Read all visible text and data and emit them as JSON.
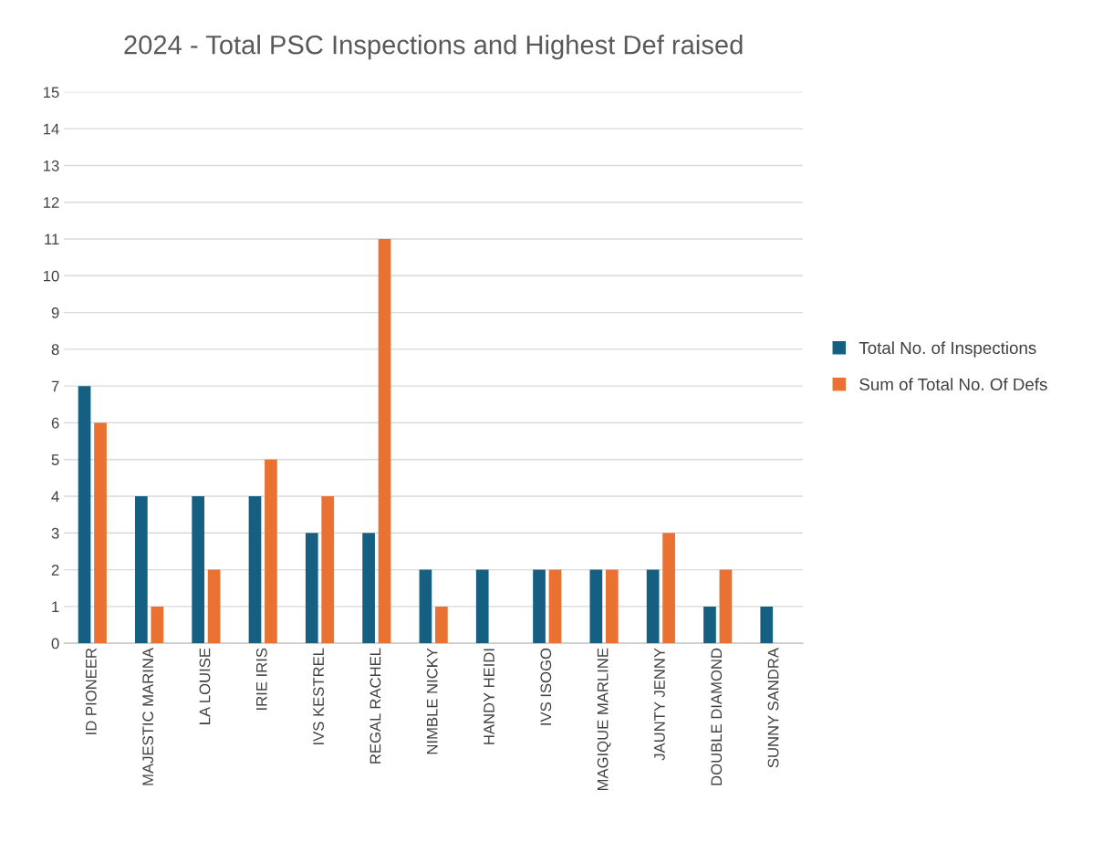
{
  "chart_data": {
    "type": "bar",
    "title": "2024 - Total PSC Inspections and Highest Def raised",
    "categories": [
      "ID PIONEER",
      "MAJESTIC MARINA",
      "LA LOUISE",
      "IRIE IRIS",
      "IVS KESTREL",
      "REGAL RACHEL",
      "NIMBLE NICKY",
      "HANDY HEIDI",
      "IVS ISOGO",
      "MAGIQUE MARLINE",
      "JAUNTY JENNY",
      "DOUBLE DIAMOND",
      "SUNNY SANDRA"
    ],
    "series": [
      {
        "name": "Total No. of Inspections",
        "color": "#156082",
        "values": [
          7,
          4,
          4,
          4,
          3,
          3,
          2,
          2,
          2,
          2,
          2,
          1,
          1
        ]
      },
      {
        "name": "Sum of Total No. Of Defs",
        "color": "#e97132",
        "values": [
          6,
          1,
          2,
          5,
          4,
          11,
          1,
          null,
          2,
          2,
          3,
          2,
          null
        ]
      }
    ],
    "ylim": [
      0,
      15
    ],
    "yticks": [
      0,
      1,
      2,
      3,
      4,
      5,
      6,
      7,
      8,
      9,
      10,
      11,
      12,
      13,
      14,
      15
    ],
    "grid": "y",
    "legend": "right"
  }
}
